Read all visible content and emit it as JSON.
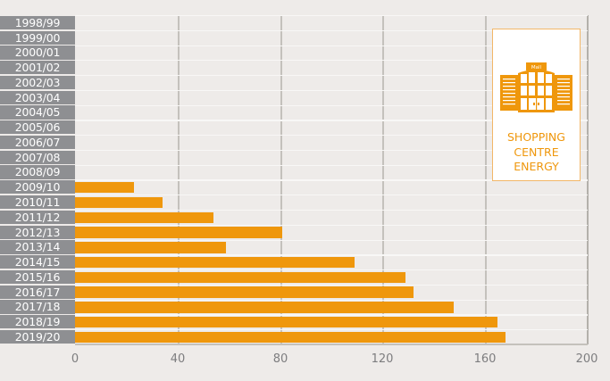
{
  "chart_data": {
    "type": "bar",
    "orientation": "horizontal",
    "title": "",
    "xlabel": "",
    "ylabel": "",
    "xlim": [
      0,
      200
    ],
    "x_ticks": [
      "0",
      "40",
      "80",
      "120",
      "160",
      "200"
    ],
    "grid": true,
    "categories": [
      "1998/99",
      "1999/00",
      "2000/01",
      "2001/02",
      "2002/03",
      "2003/04",
      "2004/05",
      "2005/06",
      "2006/07",
      "2007/08",
      "2008/09",
      "2009/10",
      "2010/11",
      "2011/12",
      "2012/13",
      "2013/14",
      "2014/15",
      "2015/16",
      "2016/17",
      "2017/18",
      "2018/19",
      "2019/20"
    ],
    "values": [
      0,
      0,
      0,
      0,
      0,
      0,
      0,
      0,
      0,
      0,
      0,
      23,
      34,
      54,
      81,
      59,
      109,
      129,
      132,
      148,
      165,
      168
    ],
    "bar_color": "#ef970c",
    "legend": {
      "position": "top-right",
      "entries": [
        "SHOPPING CENTRE ENERGY"
      ]
    }
  },
  "legend": {
    "icon": "shopping-mall-icon",
    "icon_sign": "Mall",
    "line1": "SHOPPING",
    "line2": "CENTRE",
    "line3": "ENERGY"
  },
  "axis": {
    "ticks": [
      "0",
      "40",
      "80",
      "120",
      "160",
      "200"
    ]
  },
  "colors": {
    "bar": "#ef970c",
    "label_bg": "#8e8f92",
    "background": "#eeebe9",
    "grid": "#c4c1bc"
  }
}
